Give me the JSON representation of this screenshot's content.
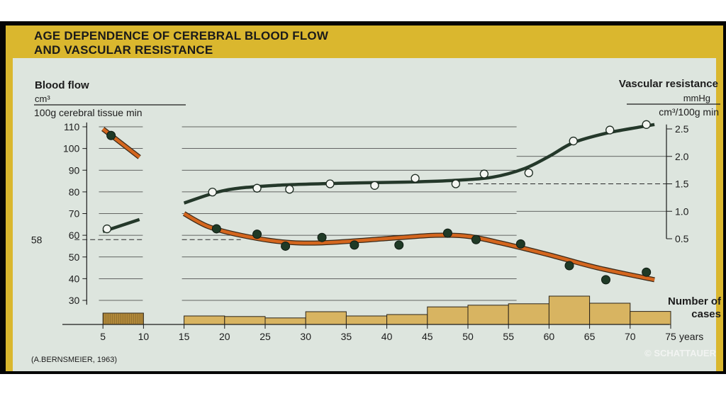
{
  "chart_data": {
    "type": "line",
    "title": "AGE DEPENDENCE OF CEREBRAL BLOOD FLOW AND VASCULAR RESISTANCE",
    "title_lines": [
      "AGE DEPENDENCE OF CEREBRAL BLOOD FLOW",
      "AND VASCULAR RESISTANCE"
    ],
    "left_axis": {
      "label": "Blood flow",
      "unit_numerator": "cm³",
      "unit_denominator": "100g cerebral tissue min",
      "ylim": [
        25,
        112
      ],
      "ticks": [
        "110",
        "100",
        "90",
        "80",
        "70",
        "60",
        "50",
        "40",
        "30"
      ],
      "reference_label": "58",
      "reference_value": 58
    },
    "right_axis": {
      "label": "Vascular resistance",
      "unit_numerator": "mmHg",
      "unit_denominator": "cm³/100g min",
      "ticks": [
        "2.5",
        "2.0",
        "1.5",
        "1.0",
        "0.5"
      ],
      "reference_value": 1.5
    },
    "x_axis": {
      "unit": "years",
      "ticks": [
        "5",
        "10",
        "15",
        "20",
        "25",
        "30",
        "35",
        "40",
        "45",
        "50",
        "55",
        "60",
        "65",
        "70",
        "75"
      ],
      "xlim": [
        0,
        75
      ]
    },
    "series": [
      {
        "name": "Blood flow",
        "axis": "left",
        "color": "#d4661e",
        "marker": "filled",
        "points": [
          [
            6,
            106
          ],
          [
            19,
            63
          ],
          [
            24,
            60.5
          ],
          [
            27.5,
            55
          ],
          [
            32,
            59
          ],
          [
            36,
            55.5
          ],
          [
            41.5,
            55.5
          ],
          [
            47.5,
            61
          ],
          [
            51,
            58
          ],
          [
            56.5,
            56
          ],
          [
            62.5,
            46
          ],
          [
            67,
            39.5
          ],
          [
            72,
            43
          ]
        ],
        "curve_segments": [
          [
            [
              5,
              109
            ],
            [
              9.5,
              96
            ]
          ],
          [
            [
              15,
              70
            ],
            [
              18,
              64
            ],
            [
              22,
              60
            ],
            [
              27,
              57
            ],
            [
              32,
              56.5
            ],
            [
              40,
              58.5
            ],
            [
              46,
              60
            ],
            [
              50,
              59.5
            ],
            [
              54,
              56.5
            ],
            [
              60,
              51
            ],
            [
              66,
              45
            ],
            [
              73,
              39.5
            ]
          ]
        ]
      },
      {
        "name": "Vascular resistance",
        "axis": "right",
        "color": "#24382a",
        "marker": "open",
        "points": [
          [
            5.5,
            0.68
          ],
          [
            18.5,
            1.35
          ],
          [
            24,
            1.42
          ],
          [
            28,
            1.4
          ],
          [
            33,
            1.5
          ],
          [
            38.5,
            1.47
          ],
          [
            43.5,
            1.6
          ],
          [
            48.5,
            1.5
          ],
          [
            52,
            1.68
          ],
          [
            57.5,
            1.7
          ],
          [
            63,
            2.28
          ],
          [
            67.5,
            2.48
          ],
          [
            72,
            2.58
          ]
        ],
        "curve_segments": [
          [
            [
              5,
              0.63
            ],
            [
              9.5,
              0.85
            ]
          ],
          [
            [
              15,
              1.15
            ],
            [
              20,
              1.38
            ],
            [
              26,
              1.47
            ],
            [
              34,
              1.51
            ],
            [
              42,
              1.53
            ],
            [
              48,
              1.56
            ],
            [
              53,
              1.62
            ],
            [
              57,
              1.78
            ],
            [
              60,
              2.0
            ],
            [
              63,
              2.25
            ],
            [
              67,
              2.42
            ],
            [
              71,
              2.53
            ],
            [
              73,
              2.58
            ]
          ]
        ]
      }
    ],
    "cases_bars": {
      "label_lines": [
        "Number of",
        "cases"
      ],
      "bins": [
        {
          "x0": 5,
          "x1": 10,
          "value": 4,
          "hatched": true
        },
        {
          "x0": 15,
          "x1": 20,
          "value": 3
        },
        {
          "x0": 20,
          "x1": 25,
          "value": 2.8
        },
        {
          "x0": 25,
          "x1": 30,
          "value": 2.3
        },
        {
          "x0": 30,
          "x1": 35,
          "value": 4.5
        },
        {
          "x0": 35,
          "x1": 40,
          "value": 3
        },
        {
          "x0": 40,
          "x1": 45,
          "value": 3.5
        },
        {
          "x0": 45,
          "x1": 50,
          "value": 6.2
        },
        {
          "x0": 50,
          "x1": 55,
          "value": 6.8
        },
        {
          "x0": 55,
          "x1": 60,
          "value": 7.3
        },
        {
          "x0": 60,
          "x1": 65,
          "value": 10
        },
        {
          "x0": 65,
          "x1": 70,
          "value": 7.5
        },
        {
          "x0": 70,
          "x1": 75,
          "value": 4.6
        }
      ],
      "max_value": 10
    },
    "source": "(A.BERNSMEIER, 1963)",
    "copyright": "© SCHATTAUER"
  }
}
